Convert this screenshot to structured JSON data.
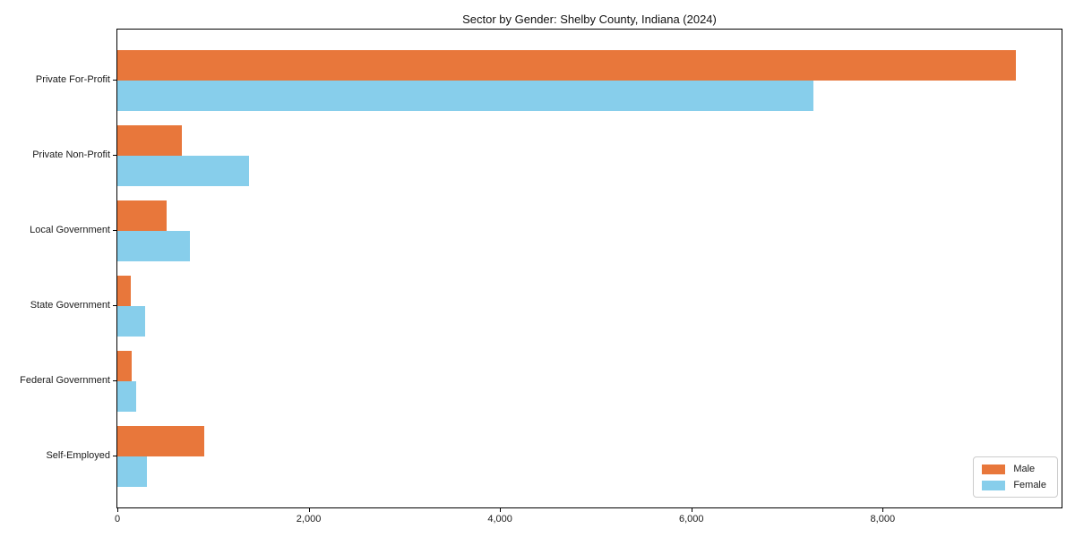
{
  "chart_data": {
    "type": "bar",
    "orientation": "horizontal",
    "title": "Sector by Gender: Shelby County, Indiana (2024)",
    "categories": [
      "Private For-Profit",
      "Private Non-Profit",
      "Local Government",
      "State Government",
      "Federal Government",
      "Self-Employed"
    ],
    "series": [
      {
        "name": "Male",
        "color": "#E8773B",
        "values": [
          9390,
          675,
          515,
          137,
          147,
          910
        ]
      },
      {
        "name": "Female",
        "color": "#87CEEB",
        "values": [
          7280,
          1375,
          760,
          287,
          200,
          310
        ]
      }
    ],
    "xlabel": "",
    "ylabel": "",
    "x_ticks": [
      0,
      2000,
      4000,
      6000,
      8000
    ],
    "x_tick_labels": [
      "0",
      "2,000",
      "4,000",
      "6,000",
      "8,000"
    ],
    "xlim": [
      0,
      9870
    ],
    "grid": false,
    "legend_position": "lower right",
    "legend_entries": [
      "Male",
      "Female"
    ]
  }
}
